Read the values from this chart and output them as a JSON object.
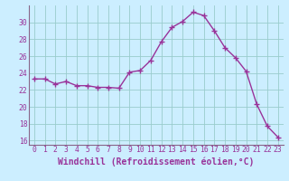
{
  "x": [
    0,
    1,
    2,
    3,
    4,
    5,
    6,
    7,
    8,
    9,
    10,
    11,
    12,
    13,
    14,
    15,
    16,
    17,
    18,
    19,
    20,
    21,
    22,
    23
  ],
  "y": [
    23.3,
    23.3,
    22.7,
    23.0,
    22.5,
    22.5,
    22.3,
    22.3,
    22.2,
    24.1,
    24.3,
    25.5,
    27.7,
    29.4,
    30.1,
    31.2,
    30.8,
    29.0,
    27.0,
    25.8,
    24.2,
    20.3,
    17.7,
    16.4
  ],
  "line_color": "#993399",
  "marker": "+",
  "marker_size": 4,
  "xlabel": "Windchill (Refroidissement éolien,°C)",
  "xlim": [
    -0.5,
    23.5
  ],
  "ylim": [
    15.5,
    32.0
  ],
  "yticks": [
    16,
    18,
    20,
    22,
    24,
    26,
    28,
    30
  ],
  "xticks": [
    0,
    1,
    2,
    3,
    4,
    5,
    6,
    7,
    8,
    9,
    10,
    11,
    12,
    13,
    14,
    15,
    16,
    17,
    18,
    19,
    20,
    21,
    22,
    23
  ],
  "grid_color": "#99cccc",
  "bg_color": "#cceeff",
  "tick_label_fontsize": 5.8,
  "xlabel_fontsize": 7.0,
  "line_width": 1.0,
  "spine_color": "#886688"
}
